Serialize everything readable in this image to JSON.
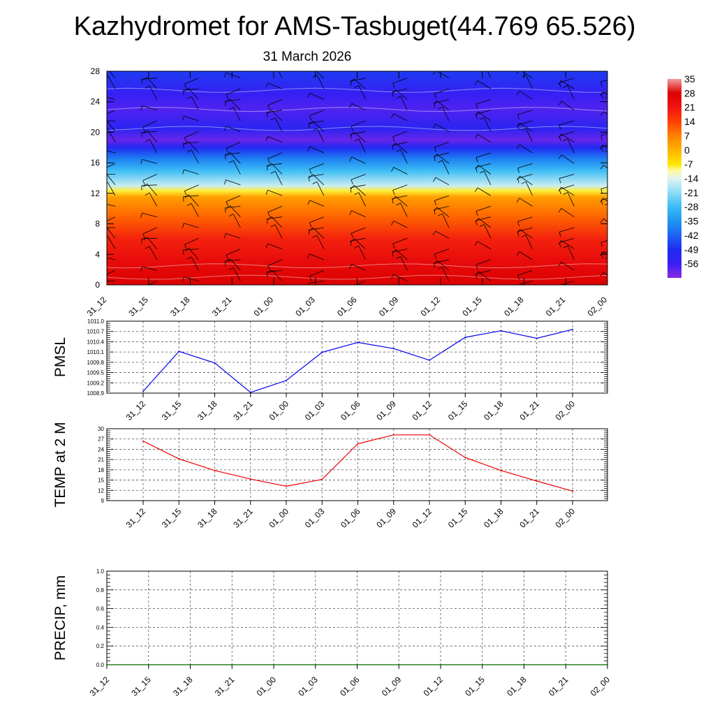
{
  "title": "Kazhydromet for AMS-Tasbuget(44.769 65.526)",
  "subtitle": "31 March 2026",
  "colors": {
    "pmsl_line": "#0000ee",
    "temp_line": "#ee0000",
    "precip_line": "#006400",
    "axis": "#000000",
    "grid": "#555555"
  },
  "chart_data": [
    {
      "type": "heatmap",
      "name": "vertical temperature and wind profile",
      "x_tick_labels": [
        "31_12",
        "31_15",
        "31_18",
        "31_21",
        "01_00",
        "01_03",
        "01_06",
        "01_09",
        "01_12",
        "01_15",
        "01_18",
        "01_21",
        "02_00"
      ],
      "y_tick_labels": [
        "0",
        "4",
        "8",
        "12",
        "16",
        "20",
        "24",
        "28"
      ],
      "ylim": [
        0,
        28
      ],
      "profile": [
        {
          "level": 0,
          "value": 28
        },
        {
          "level": 3,
          "value": 24
        },
        {
          "level": 6,
          "value": 19
        },
        {
          "level": 9,
          "value": 10
        },
        {
          "level": 11.5,
          "value": 3
        },
        {
          "level": 12.3,
          "value": -8
        },
        {
          "level": 13,
          "value": -16
        },
        {
          "level": 15,
          "value": -28
        },
        {
          "level": 16.5,
          "value": -38
        },
        {
          "level": 18,
          "value": -50
        },
        {
          "level": 19,
          "value": -60
        },
        {
          "level": 20.5,
          "value": -52
        },
        {
          "level": 23,
          "value": -58
        },
        {
          "level": 25,
          "value": -55
        },
        {
          "level": 28,
          "value": -47
        }
      ],
      "colorbar_labels": [
        "35",
        "28",
        "21",
        "14",
        "7",
        "0",
        "-7",
        "-14",
        "-21",
        "-28",
        "-35",
        "-42",
        "-49",
        "-56"
      ],
      "colorbar_range": [
        -63,
        35
      ],
      "colorbar_stops": [
        {
          "value": -63,
          "color": "#8a2be2"
        },
        {
          "value": -56,
          "color": "#3a1ef5"
        },
        {
          "value": -49,
          "color": "#1e2bf0"
        },
        {
          "value": -42,
          "color": "#1e64f5"
        },
        {
          "value": -35,
          "color": "#1e96f0"
        },
        {
          "value": -28,
          "color": "#3cbcf5"
        },
        {
          "value": -21,
          "color": "#8cdcf8"
        },
        {
          "value": -14,
          "color": "#e2f4f0"
        },
        {
          "value": -10,
          "color": "#fff9a0"
        },
        {
          "value": -7,
          "color": "#ffe600"
        },
        {
          "value": 0,
          "color": "#ffb400"
        },
        {
          "value": 7,
          "color": "#ff8000"
        },
        {
          "value": 14,
          "color": "#ff4000"
        },
        {
          "value": 21,
          "color": "#f01414"
        },
        {
          "value": 28,
          "color": "#dc0000"
        },
        {
          "value": 35,
          "color": "#f0a0a0"
        }
      ],
      "wind_barbs": "black wind barbs at every 3-hourly step and each height level"
    },
    {
      "type": "line",
      "ylabel": "PMSL",
      "x_tick_labels": [
        "31_12",
        "31_15",
        "31_18",
        "31_21",
        "01_00",
        "01_03",
        "01_06",
        "01_09",
        "01_12",
        "01_15",
        "01_18",
        "01_21",
        "02_00"
      ],
      "y_tick_labels": [
        "1008.9",
        "1009.2",
        "1009.5",
        "1009.8",
        "1010.1",
        "1010.4",
        "1010.7",
        "1011.0"
      ],
      "ylim": [
        1008.9,
        1011.0
      ],
      "values": [
        1008.95,
        1010.12,
        1009.78,
        1008.92,
        1009.27,
        1010.09,
        1010.38,
        1010.2,
        1009.86,
        1010.53,
        1010.72,
        1010.5,
        1010.76
      ]
    },
    {
      "type": "line",
      "ylabel": "TEMP at 2 M",
      "x_tick_labels": [
        "31_12",
        "31_15",
        "31_18",
        "31_21",
        "01_00",
        "01_03",
        "01_06",
        "01_09",
        "01_12",
        "01_15",
        "01_18",
        "01_21",
        "02_00"
      ],
      "y_tick_labels": [
        "9",
        "12",
        "15",
        "18",
        "21",
        "24",
        "27",
        "30"
      ],
      "ylim": [
        9,
        30
      ],
      "values": [
        26.4,
        21.2,
        17.8,
        15.3,
        13.2,
        15.2,
        25.6,
        28.2,
        28.2,
        21.6,
        17.8,
        14.7,
        11.8
      ]
    },
    {
      "type": "line",
      "ylabel": "PRECIP, mm",
      "x_tick_labels": [
        "31_12",
        "31_15",
        "31_18",
        "31_21",
        "01_00",
        "01_03",
        "01_06",
        "01_09",
        "01_12",
        "01_15",
        "01_18",
        "01_21",
        "02_00"
      ],
      "y_tick_labels": [
        "0.0",
        "0.2",
        "0.4",
        "0.6",
        "0.8",
        "1.0"
      ],
      "ylim": [
        0,
        1
      ],
      "values": [
        0,
        0,
        0,
        0,
        0,
        0,
        0,
        0,
        0,
        0,
        0,
        0,
        0
      ]
    }
  ]
}
